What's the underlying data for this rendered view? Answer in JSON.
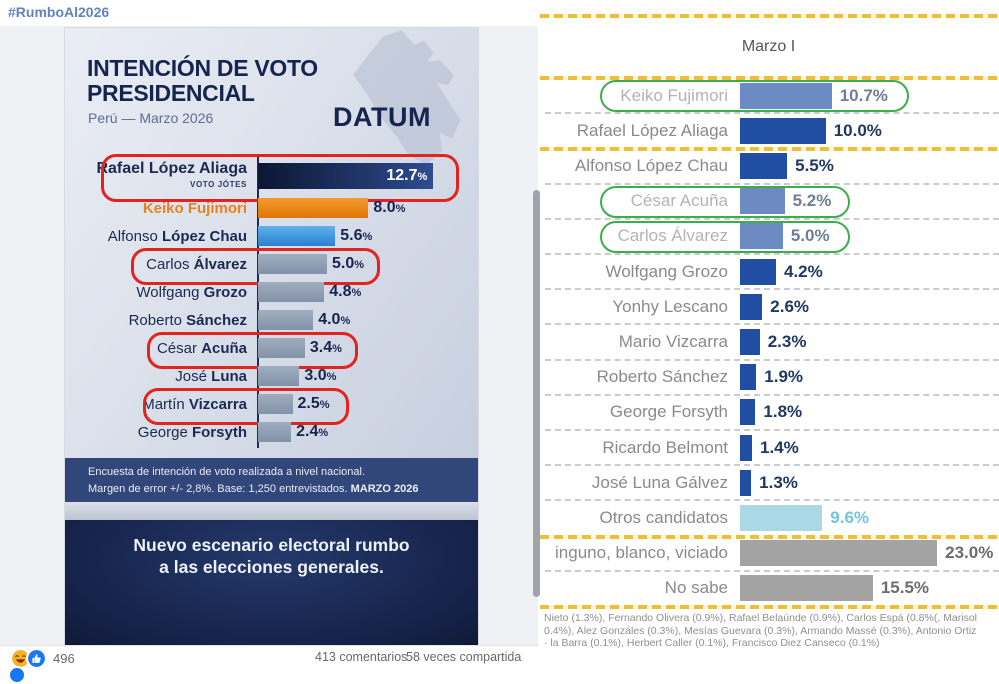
{
  "hashtag": "#RumboAl2026",
  "post": {
    "reactions_count": "496",
    "comments_label": "413 comentarios",
    "shares_label": "58 veces compartida",
    "reaction_icons": [
      "haha-reaction-icon",
      "like-reaction-icon"
    ]
  },
  "poll_graphic": {
    "title_line1": "INTENCIÓN DE VOTO",
    "title_line2": "PRESIDENCIAL",
    "subtitle": "Perú — Marzo 2026",
    "brand": "DATUM",
    "note_line1": "Encuesta de intención de voto realizada a nivel nacional.",
    "note_line2": "Margen de error +/- 2,8%. Base: 1,250 entrevistados. ",
    "note_line2_bold": "MARZO 2026",
    "banner_line1": "Nuevo escenario electoral rumbo",
    "banner_line2": "a las elecciones generales.",
    "rows": [
      {
        "first": "Rafael",
        "last": "López Aliaga",
        "sub": "VOTO JÓTES",
        "value": 12.7,
        "display": "12.7%",
        "bar": "navy",
        "value_inside": true,
        "big": true,
        "red_ring": true
      },
      {
        "first": "",
        "last": "Keiko Fujimori",
        "value": 8.0,
        "display": "8.0%",
        "bar": "orange",
        "label_color": "orange"
      },
      {
        "first": "Alfonso",
        "last": "López Chau",
        "value": 5.6,
        "display": "5.6%",
        "bar": "blue"
      },
      {
        "first": "Carlos",
        "last": "Álvarez",
        "value": 5.0,
        "display": "5.0%",
        "bar": "gray",
        "red_ring": true
      },
      {
        "first": "Wolfgang",
        "last": "Grozo",
        "value": 4.8,
        "display": "4.8%",
        "bar": "gray"
      },
      {
        "first": "Roberto",
        "last": "Sánchez",
        "value": 4.0,
        "display": "4.0%",
        "bar": "gray"
      },
      {
        "first": "César",
        "last": "Acuña",
        "value": 3.4,
        "display": "3.4%",
        "bar": "gray",
        "red_ring": true
      },
      {
        "first": "José",
        "last": "Luna",
        "value": 3.0,
        "display": "3.0%",
        "bar": "gray"
      },
      {
        "first": "Martín",
        "last": "Vizcarra",
        "value": 2.5,
        "display": "2.5%",
        "bar": "gray",
        "red_ring": true
      },
      {
        "first": "George",
        "last": "Forsyth",
        "value": 2.4,
        "display": "2.4%",
        "bar": "gray"
      }
    ]
  },
  "right_chart": {
    "title": "Marzo I",
    "rows": [
      {
        "label": "Keiko Fujimori",
        "value": 10.7,
        "display": "10.7%",
        "bar": "blue",
        "green_ring": true
      },
      {
        "label": "Rafael López Aliaga",
        "value": 10.0,
        "display": "10.0%",
        "bar": "blue"
      },
      {
        "label": "Alfonso López Chau",
        "value": 5.5,
        "display": "5.5%",
        "bar": "blue"
      },
      {
        "label": "César Acuña",
        "value": 5.2,
        "display": "5.2%",
        "bar": "blue",
        "green_ring": true
      },
      {
        "label": "Carlos Álvarez",
        "value": 5.0,
        "display": "5.0%",
        "bar": "blue",
        "green_ring": true
      },
      {
        "label": "Wolfgang Grozo",
        "value": 4.2,
        "display": "4.2%",
        "bar": "blue"
      },
      {
        "label": "Yonhy Lescano",
        "value": 2.6,
        "display": "2.6%",
        "bar": "blue"
      },
      {
        "label": "Mario Vizcarra",
        "value": 2.3,
        "display": "2.3%",
        "bar": "blue"
      },
      {
        "label": "Roberto Sánchez",
        "value": 1.9,
        "display": "1.9%",
        "bar": "blue"
      },
      {
        "label": "George Forsyth",
        "value": 1.8,
        "display": "1.8%",
        "bar": "blue"
      },
      {
        "label": "Ricardo Belmont",
        "value": 1.4,
        "display": "1.4%",
        "bar": "blue"
      },
      {
        "label": "José Luna Gálvez",
        "value": 1.3,
        "display": "1.3%",
        "bar": "blue"
      },
      {
        "label": "Otros candidatos",
        "value": 9.6,
        "display": "9.6%",
        "bar": "lightblue"
      },
      {
        "label": "inguno, blanco, viciado",
        "value": 23.0,
        "display": "23.0%",
        "bar": "gray"
      },
      {
        "label": "No sabe",
        "value": 15.5,
        "display": "15.5%",
        "bar": "gray"
      }
    ],
    "footnote_lines": [
      "Nieto (1.3%), Fernando Olivera (0.9%), Rafael Belaúnde (0.9%), Carlos Espá (0.8%(, Marisol",
      "0.4%), Alez Gonzáles (0.3%), Mesías Guevara (0.3%), Armando Massé (0.3%), Antonio Ortiz",
      "· la Barra (0.1%), Herbert Caller (0.1%), Francisco Diez Canseco (0.1%)"
    ]
  },
  "colors": {
    "accent_navy_bar": "#1f4ea3",
    "value_navy": "#1f3864",
    "yellow_separator": "#edbe3c",
    "green_highlight": "#3bae4a",
    "red_highlight": "#e3231e",
    "orange_bar": "#ee8418",
    "lightblue_bar": "#abd8e5",
    "gray_bar": "#a3a3a3"
  },
  "chart_data": [
    {
      "type": "bar",
      "orientation": "horizontal",
      "title": "INTENCIÓN DE VOTO PRESIDENCIAL — Perú — Marzo 2026 (DATUM)",
      "categories": [
        "Rafael López Aliaga",
        "Keiko Fujimori",
        "Alfonso López Chau",
        "Carlos Álvarez",
        "Wolfgang Grozo",
        "Roberto Sánchez",
        "César Acuña",
        "José Luna",
        "Martín Vizcarra",
        "George Forsyth"
      ],
      "values": [
        12.7,
        8.0,
        5.6,
        5.0,
        4.8,
        4.0,
        3.4,
        3.0,
        2.5,
        2.4
      ],
      "unit": "%",
      "annotations": [
        "Encuesta de intención de voto realizada a nivel nacional.",
        "Margen de error +/- 2,8%. Base: 1,250 entrevistados. MARZO 2026",
        "Nuevo escenario electoral rumbo a las elecciones generales."
      ],
      "highlighted_red": [
        "Rafael López Aliaga",
        "Carlos Álvarez",
        "César Acuña",
        "Martín Vizcarra"
      ],
      "grid": false,
      "legend": false
    },
    {
      "type": "bar",
      "orientation": "horizontal",
      "title": "Marzo I",
      "categories": [
        "Keiko Fujimori",
        "Rafael López Aliaga",
        "Alfonso López Chau",
        "César Acuña",
        "Carlos Álvarez",
        "Wolfgang Grozo",
        "Yonhy Lescano",
        "Mario Vizcarra",
        "Roberto Sánchez",
        "George Forsyth",
        "Ricardo Belmont",
        "José Luna Gálvez",
        "Otros candidatos",
        "inguno, blanco, viciado",
        "No sabe"
      ],
      "values": [
        10.7,
        10.0,
        5.5,
        5.2,
        5.0,
        4.2,
        2.6,
        2.3,
        1.9,
        1.8,
        1.4,
        1.3,
        9.6,
        23.0,
        15.5
      ],
      "unit": "%",
      "highlighted_green": [
        "Keiko Fujimori",
        "César Acuña",
        "Carlos Álvarez"
      ],
      "grid": false,
      "legend": false
    }
  ]
}
